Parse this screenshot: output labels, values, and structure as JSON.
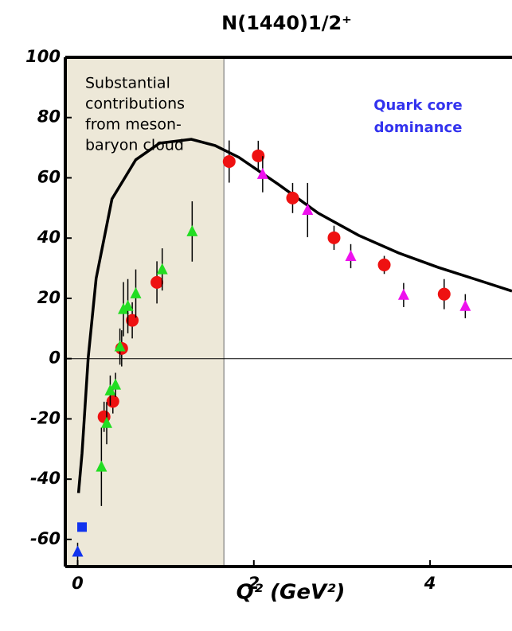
{
  "chart_data": {
    "type": "scatter",
    "title": "N(1440)1/2⁺",
    "x_label": "Q² (GeV²)",
    "xlim": [
      -0.14,
      4.93
    ],
    "ylim": [
      -69,
      100
    ],
    "xticks": [
      0,
      2,
      4
    ],
    "yticks": [
      100,
      80,
      60,
      40,
      20,
      0,
      -20,
      -40,
      -60
    ],
    "zero_line": true,
    "region_xlim": [
      -0.14,
      1.66
    ],
    "region_color": "#ede8d8",
    "annotations": [
      {
        "lines": [
          "Substantial",
          "contributions",
          "from meson-",
          "baryon cloud"
        ],
        "color": "#000000"
      },
      {
        "lines": [
          "Quark core",
          "dominance"
        ],
        "color": "#3333ee"
      }
    ],
    "series": [
      {
        "marker": "line",
        "color": "#000000",
        "x": [
          0.01,
          0.05,
          0.12,
          0.21,
          0.39,
          0.66,
          0.93,
          1.29,
          1.56,
          1.83,
          2.28,
          2.73,
          3.19,
          3.64,
          4.09,
          4.54,
          4.93
        ],
        "values": [
          -44.6,
          -31.4,
          0.3,
          26.6,
          53,
          66,
          71.5,
          72.8,
          70.7,
          66.8,
          57.8,
          48.3,
          40.9,
          35.1,
          30.3,
          26.1,
          22.4
        ]
      },
      {
        "marker": "circle",
        "color": "#ee1111",
        "x": [
          0.3,
          0.4,
          0.5,
          0.62,
          0.9,
          1.72,
          2.05,
          2.44,
          2.91,
          3.48,
          4.16
        ],
        "values": [
          -19.3,
          -14.2,
          3.4,
          12.7,
          25.3,
          65.4,
          67.3,
          53.3,
          40.1,
          31.1,
          21.4
        ],
        "errors": [
          5,
          4,
          6,
          6,
          7,
          7,
          5,
          5,
          4,
          3,
          5
        ]
      },
      {
        "marker": "triangle",
        "color": "#22dd22",
        "x": [
          0.27,
          0.33,
          0.37,
          0.43,
          0.48,
          0.52,
          0.57,
          0.66,
          0.96,
          1.3
        ],
        "values": [
          -35.9,
          -21.4,
          -10.6,
          -8.7,
          4,
          16.4,
          17.4,
          21.6,
          29.6,
          42.2
        ],
        "errors": [
          13,
          7,
          5,
          4,
          6,
          9,
          9,
          8,
          7,
          10
        ]
      },
      {
        "marker": "triangle",
        "color": "#ee11ee",
        "x": [
          2.1,
          2.61,
          3.1,
          3.7,
          4.4
        ],
        "values": [
          61.2,
          49.3,
          34,
          21.1,
          17.4
        ],
        "errors": [
          6,
          9,
          4,
          4,
          4
        ]
      },
      {
        "marker": "square",
        "color": "#1133ee",
        "x": [
          0.05
        ],
        "values": [
          -55.9
        ],
        "errors": [
          0
        ]
      },
      {
        "marker": "triangle",
        "color": "#1133ee",
        "x": [
          0
        ],
        "values": [
          -64.1
        ],
        "errors": [
          3
        ]
      }
    ]
  }
}
